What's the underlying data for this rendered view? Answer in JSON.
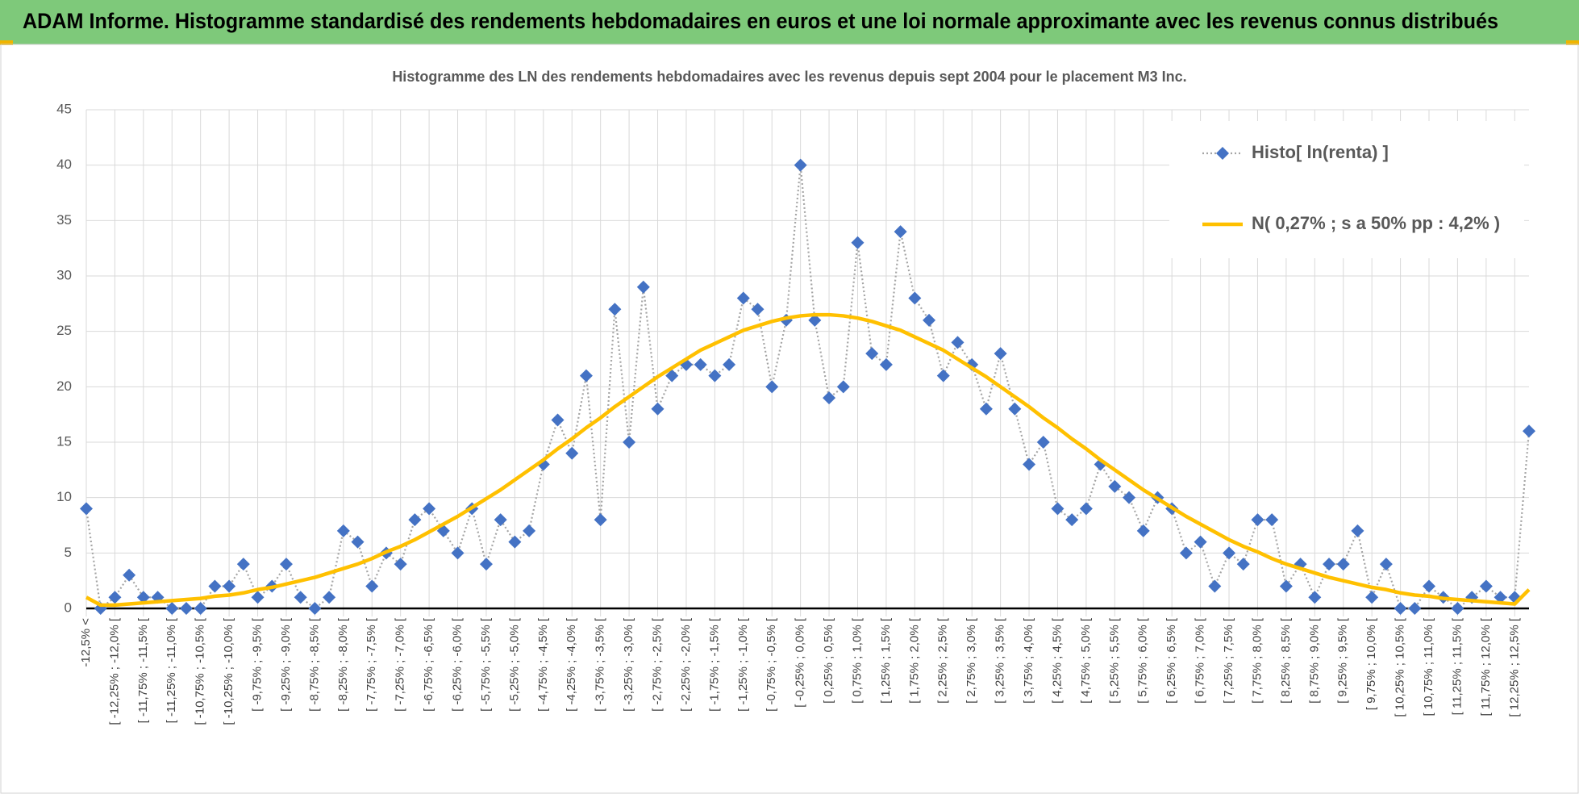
{
  "header": {
    "title": "ADAM Informe. Histogramme standardisé des rendements hebdomadaires en euros et une loi normale approximante avec les revenus connus distribués"
  },
  "chart_data": {
    "type": "line",
    "title": "Histogramme des LN des rendements hebdomadaires avec les revenus depuis sept 2004 pour le placement M3 Inc.",
    "categories": [
      "-12,5% <",
      null,
      "[ -12,25% ; -12,0% [",
      null,
      "[ -11,75% ; -11,5% [",
      null,
      "[ -11,25% ; -11,0% [",
      null,
      "[ -10,75% ; -10,5% [",
      null,
      "[ -10,25% ; -10,0% [",
      null,
      "[ -9,75% ; -9,5% [",
      null,
      "[ -9,25% ; -9,0% [",
      null,
      "[ -8,75% ; -8,5% [",
      null,
      "[ -8,25% ; -8,0% [",
      null,
      "[ -7,75% ; -7,5% [",
      null,
      "[ -7,25% ; -7,0% [",
      null,
      "[ -6,75% ; -6,5% [",
      null,
      "[ -6,25% ; -6,0% [",
      null,
      "[ -5,75% ; -5,5% [",
      null,
      "[ -5,25% ; -5,0% [",
      null,
      "[ -4,75% ; -4,5% [",
      null,
      "[ -4,25% ; -4,0% [",
      null,
      "[ -3,75% ; -3,5% [",
      null,
      "[ -3,25% ; -3,0% [",
      null,
      "[ -2,75% ; -2,5% [",
      null,
      "[ -2,25% ; -2,0% [",
      null,
      "[ -1,75% ; -1,5% [",
      null,
      "[ -1,25% ; -1,0% [",
      null,
      "[ -0,75% ; -0,5% [",
      null,
      "[ -0,25% ; 0,0% [",
      null,
      "[ 0,25% ; 0,5% [",
      null,
      "[ 0,75% ; 1,0% [",
      null,
      "[ 1,25% ; 1,5% [",
      null,
      "[ 1,75% ; 2,0% [",
      null,
      "[ 2,25% ; 2,5% [",
      null,
      "[ 2,75% ; 3,0% [",
      null,
      "[ 3,25% ; 3,5% [",
      null,
      "[ 3,75% ; 4,0% [",
      null,
      "[ 4,25% ; 4,5% [",
      null,
      "[ 4,75% ; 5,0% [",
      null,
      "[ 5,25% ; 5,5% [",
      null,
      "[ 5,75% ; 6,0% [",
      null,
      "[ 6,25% ; 6,5% [",
      null,
      "[ 6,75% ; 7,0% [",
      null,
      "[ 7,25% ; 7,5% [",
      null,
      "[ 7,75% ; 8,0% [",
      null,
      "[ 8,25% ; 8,5% [",
      null,
      "[ 8,75% ; 9,0% [",
      null,
      "[ 9,25% ; 9,5% [",
      null,
      "[ 9,75% ; 10,0% [",
      null,
      "[ 10,25% ; 10,5% [",
      null,
      "[ 10,75% ; 11,0% [",
      null,
      "[ 11,25% ; 11,5% [",
      null,
      "[ 11,75% ; 12,0% [",
      null,
      "[ 12,25% ; 12,5% [",
      null
    ],
    "series": [
      {
        "name": "Histo[ ln(renta) ]",
        "color": "#4472c4",
        "line_color": "#a5a5a5",
        "dashed": true,
        "marker": "diamond",
        "values": [
          9,
          0,
          1,
          3,
          1,
          1,
          0,
          0,
          0,
          2,
          2,
          4,
          1,
          2,
          4,
          1,
          0,
          1,
          7,
          6,
          2,
          5,
          4,
          8,
          9,
          7,
          5,
          9,
          4,
          8,
          6,
          7,
          13,
          17,
          14,
          21,
          8,
          27,
          15,
          29,
          18,
          21,
          22,
          22,
          21,
          22,
          28,
          27,
          20,
          26,
          40,
          26,
          19,
          20,
          33,
          23,
          22,
          34,
          28,
          26,
          21,
          24,
          22,
          18,
          23,
          18,
          13,
          15,
          9,
          8,
          9,
          13,
          11,
          10,
          7,
          10,
          9,
          5,
          6,
          2,
          5,
          4,
          8,
          8,
          2,
          4,
          1,
          4,
          4,
          7,
          1,
          4,
          0,
          0,
          2,
          1,
          0,
          1,
          2,
          1,
          1,
          16
        ]
      },
      {
        "name": "N( 0,27% ; s a 50% pp : 4,2% )",
        "color": "#ffc000",
        "line_color": "#ffc000",
        "dashed": false,
        "values": [
          1.0,
          0.3,
          0.3,
          0.4,
          0.5,
          0.6,
          0.7,
          0.8,
          0.9,
          1.1,
          1.2,
          1.4,
          1.7,
          1.9,
          2.2,
          2.5,
          2.8,
          3.2,
          3.6,
          4.0,
          4.5,
          5.1,
          5.6,
          6.2,
          6.9,
          7.6,
          8.3,
          9.1,
          9.9,
          10.7,
          11.6,
          12.5,
          13.4,
          14.4,
          15.3,
          16.3,
          17.2,
          18.2,
          19.1,
          20.0,
          20.9,
          21.7,
          22.5,
          23.3,
          23.9,
          24.5,
          25.1,
          25.5,
          25.9,
          26.2,
          26.4,
          26.5,
          26.5,
          26.4,
          26.2,
          25.9,
          25.5,
          25.1,
          24.5,
          23.9,
          23.3,
          22.5,
          21.7,
          20.9,
          20.0,
          19.1,
          18.2,
          17.2,
          16.3,
          15.3,
          14.4,
          13.4,
          12.5,
          11.6,
          10.7,
          9.9,
          9.1,
          8.3,
          7.6,
          6.9,
          6.2,
          5.6,
          5.1,
          4.5,
          4.0,
          3.6,
          3.2,
          2.8,
          2.5,
          2.2,
          1.9,
          1.7,
          1.4,
          1.2,
          1.1,
          0.9,
          0.8,
          0.7,
          0.6,
          0.5,
          0.4,
          1.7
        ]
      }
    ],
    "ylim": [
      0,
      45
    ],
    "yticks": [
      0,
      5,
      10,
      15,
      20,
      25,
      30,
      35,
      40,
      45
    ],
    "grid": true,
    "legend": "top-right"
  }
}
